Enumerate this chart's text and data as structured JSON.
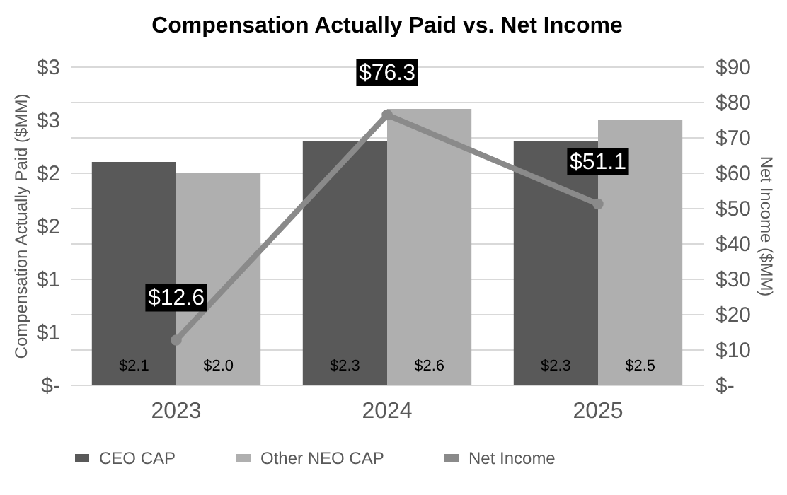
{
  "chart_data": {
    "type": "bar",
    "title": "Compensation Actually Paid vs. Net Income",
    "categories": [
      "2023",
      "2024",
      "2025"
    ],
    "ylabel": "Compensation Actually Paid ($MM)",
    "y2label": "Net Income ($MM)",
    "series": [
      {
        "name": "CEO CAP",
        "color": "#595959",
        "values": [
          2.1,
          2.3,
          2.3
        ],
        "value_labels": [
          "$2.1",
          "$2.3",
          "$2.3"
        ]
      },
      {
        "name": "Other NEO CAP",
        "color": "#afafaf",
        "values": [
          2.0,
          2.6,
          2.5
        ],
        "value_labels": [
          "$2.0",
          "$2.6",
          "$2.5"
        ]
      },
      {
        "name": "Net Income",
        "type": "line",
        "axis": "y2",
        "color": "#8a8a8a",
        "values": [
          12.6,
          76.3,
          51.1
        ],
        "value_labels": [
          "$12.6",
          "$76.3",
          "$51.1"
        ]
      }
    ],
    "ylim": [
      0,
      3
    ],
    "yticks": [
      {
        "value": 0,
        "label": "$-"
      },
      {
        "value": 0.5,
        "label": "$1"
      },
      {
        "value": 1,
        "label": "$1"
      },
      {
        "value": 1.5,
        "label": "$2"
      },
      {
        "value": 2,
        "label": "$2"
      },
      {
        "value": 2.5,
        "label": "$3"
      },
      {
        "value": 3,
        "label": "$3"
      }
    ],
    "y2lim": [
      0,
      90
    ],
    "y2ticks": [
      {
        "value": 0,
        "label": "$-"
      },
      {
        "value": 10,
        "label": "$10"
      },
      {
        "value": 20,
        "label": "$20"
      },
      {
        "value": 30,
        "label": "$30"
      },
      {
        "value": 40,
        "label": "$40"
      },
      {
        "value": 50,
        "label": "$50"
      },
      {
        "value": 60,
        "label": "$60"
      },
      {
        "value": 70,
        "label": "$70"
      },
      {
        "value": 80,
        "label": "$80"
      },
      {
        "value": 90,
        "label": "$90"
      }
    ],
    "grid": "y2",
    "legend": "bottom",
    "marker": "circle",
    "line_style": "solid"
  }
}
